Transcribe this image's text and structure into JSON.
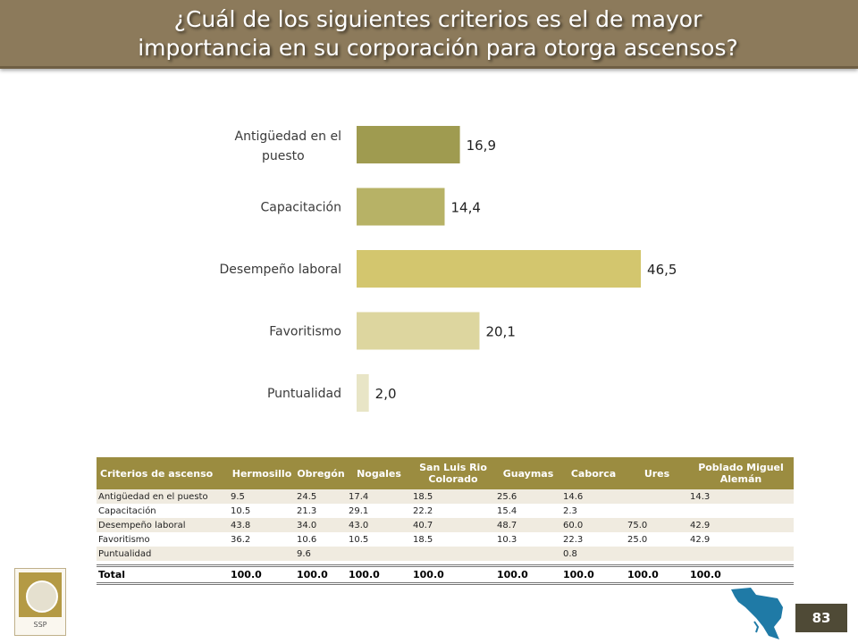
{
  "title_line1": "¿Cuál de los siguientes criterios es el de mayor",
  "title_line2": "importancia en su corporación para otorga ascensos?",
  "chart_data": {
    "type": "bar",
    "orientation": "horizontal",
    "categories": [
      "Antigüedad en el puesto",
      "Capacitación",
      "Desempeño laboral",
      "Favoritismo",
      "Puntualidad"
    ],
    "values": [
      16.9,
      14.4,
      46.5,
      20.1,
      2.0
    ],
    "value_labels": [
      "16,9",
      "14,4",
      "46,5",
      "20,1",
      "2,0"
    ],
    "colors": [
      "#9f9b50",
      "#b7b266",
      "#d3c66e",
      "#ddd69f",
      "#e8e5c6"
    ],
    "xlim": [
      0,
      50
    ],
    "grid": false,
    "legend": false
  },
  "table": {
    "headers": [
      "Criterios de ascenso",
      "Hermosillo",
      "Obregón",
      "Nogales",
      "San Luis Rio Colorado",
      "Guaymas",
      "Caborca",
      "Ures",
      "Poblado Miguel Alemán"
    ],
    "rows": [
      [
        "Antigüedad en el puesto",
        "9.5",
        "24.5",
        "17.4",
        "18.5",
        "25.6",
        "14.6",
        "",
        "14.3"
      ],
      [
        "Capacitación",
        "10.5",
        "21.3",
        "29.1",
        "22.2",
        "15.4",
        "2.3",
        "",
        ""
      ],
      [
        "Desempeño laboral",
        "43.8",
        "34.0",
        "43.0",
        "40.7",
        "48.7",
        "60.0",
        "75.0",
        "42.9"
      ],
      [
        "Favoritismo",
        "36.2",
        "10.6",
        "10.5",
        "18.5",
        "10.3",
        "22.3",
        "25.0",
        "42.9"
      ],
      [
        "Puntualidad",
        "",
        "9.6",
        "",
        "",
        "",
        "0.8",
        "",
        ""
      ]
    ],
    "total": [
      "Total",
      "100.0",
      "100.0",
      "100.0",
      "100.0",
      "100.0",
      "100.0",
      "100.0",
      "100.0"
    ]
  },
  "logo_text": "SSP",
  "page_number": "83"
}
